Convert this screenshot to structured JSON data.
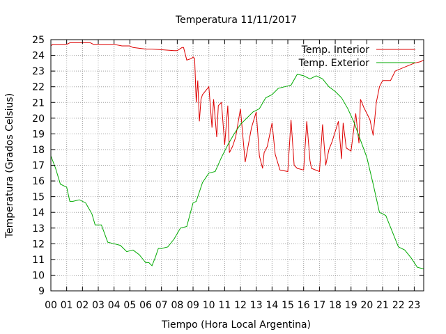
{
  "chart_data": {
    "type": "line",
    "title": "Temperatura 11/11/2017",
    "xlabel": "Tiempo (Hora Local Argentina)",
    "ylabel": "Temperatura (Grados Celsius)",
    "xlim": [
      0,
      23.6
    ],
    "ylim": [
      9,
      25
    ],
    "grid": true,
    "legend_position": "top-right",
    "x_tick_labels": [
      "00",
      "01",
      "02",
      "03",
      "04",
      "05",
      "06",
      "07",
      "08",
      "09",
      "10",
      "11",
      "12",
      "13",
      "14",
      "15",
      "16",
      "17",
      "18",
      "19",
      "20",
      "21",
      "22",
      "23"
    ],
    "y_tick_labels": [
      "9",
      "10",
      "11",
      "12",
      "13",
      "14",
      "15",
      "16",
      "17",
      "18",
      "19",
      "20",
      "21",
      "22",
      "23",
      "24",
      "25"
    ],
    "series": [
      {
        "name": "Temp. Interior",
        "color": "#dd0000",
        "x": [
          0,
          0.1,
          1.0,
          1.2,
          2.5,
          2.7,
          4.0,
          4.5,
          5.0,
          5.2,
          6.0,
          6.4,
          7.8,
          8.0,
          8.3,
          8.4,
          8.6,
          8.9,
          9.0,
          9.1,
          9.2,
          9.3,
          9.4,
          9.5,
          9.6,
          10.0,
          10.2,
          10.3,
          10.5,
          10.6,
          10.7,
          10.8,
          11.0,
          11.2,
          11.3,
          11.5,
          11.7,
          12.0,
          12.3,
          12.7,
          13.0,
          13.2,
          13.4,
          13.5,
          13.7,
          14.0,
          14.2,
          14.5,
          15.0,
          15.2,
          15.4,
          15.6,
          16.0,
          16.2,
          16.4,
          16.5,
          17.0,
          17.2,
          17.4,
          17.6,
          17.8,
          18.2,
          18.4,
          18.5,
          18.7,
          19.0,
          19.3,
          19.5,
          19.6,
          19.8,
          20.2,
          20.4,
          20.6,
          20.8,
          21.0,
          21.5,
          21.8,
          22.5,
          23.0,
          23.4,
          23.6
        ],
        "y": [
          24.6,
          24.7,
          24.7,
          24.8,
          24.8,
          24.7,
          24.7,
          24.6,
          24.6,
          24.5,
          24.4,
          24.4,
          24.3,
          24.3,
          24.5,
          24.5,
          23.7,
          23.8,
          23.9,
          23.8,
          21.0,
          22.4,
          19.8,
          21.2,
          21.5,
          22.0,
          19.4,
          21.2,
          18.8,
          20.8,
          20.9,
          21.0,
          18.3,
          20.8,
          17.8,
          18.2,
          18.8,
          20.6,
          17.2,
          19.4,
          20.4,
          17.6,
          16.8,
          17.8,
          18.2,
          19.7,
          17.7,
          16.7,
          16.6,
          19.9,
          17.0,
          16.8,
          16.7,
          19.8,
          17.3,
          16.8,
          16.6,
          19.6,
          17.0,
          18.0,
          18.5,
          19.8,
          17.4,
          19.7,
          18.1,
          17.9,
          20.3,
          18.4,
          21.2,
          20.7,
          19.9,
          18.9,
          21.0,
          22.0,
          22.4,
          22.4,
          23.0,
          23.3,
          23.5,
          23.6,
          23.7
        ]
      },
      {
        "name": "Temp. Exterior",
        "color": "#00aa00",
        "x": [
          0,
          0.3,
          0.6,
          1.0,
          1.2,
          1.4,
          1.8,
          2.2,
          2.6,
          2.8,
          3.2,
          3.6,
          4.0,
          4.4,
          4.8,
          5.2,
          5.6,
          6.0,
          6.2,
          6.4,
          6.6,
          6.8,
          7.0,
          7.4,
          7.8,
          8.2,
          8.6,
          9.0,
          9.2,
          9.6,
          10.0,
          10.4,
          10.8,
          11.2,
          11.6,
          12.0,
          12.4,
          12.8,
          13.2,
          13.6,
          14.0,
          14.4,
          14.8,
          15.2,
          15.6,
          16.0,
          16.4,
          16.8,
          17.2,
          17.6,
          18.0,
          18.4,
          18.8,
          19.2,
          19.6,
          20.0,
          20.4,
          20.8,
          21.2,
          21.6,
          22.0,
          22.4,
          22.8,
          23.2,
          23.6
        ],
        "y": [
          17.6,
          16.8,
          15.8,
          15.6,
          14.7,
          14.7,
          14.8,
          14.6,
          13.9,
          13.2,
          13.2,
          12.1,
          12.0,
          11.9,
          11.5,
          11.6,
          11.3,
          10.8,
          10.8,
          10.6,
          11.1,
          11.7,
          11.7,
          11.8,
          12.3,
          13.0,
          13.1,
          14.6,
          14.7,
          15.9,
          16.5,
          16.6,
          17.5,
          18.3,
          19.0,
          19.6,
          20.0,
          20.4,
          20.6,
          21.3,
          21.5,
          21.9,
          22.0,
          22.1,
          22.8,
          22.7,
          22.5,
          22.7,
          22.5,
          22.0,
          21.7,
          21.3,
          20.6,
          19.7,
          18.6,
          17.5,
          15.8,
          14.0,
          13.8,
          12.8,
          11.8,
          11.6,
          11.1,
          10.5,
          10.4
        ]
      }
    ]
  }
}
